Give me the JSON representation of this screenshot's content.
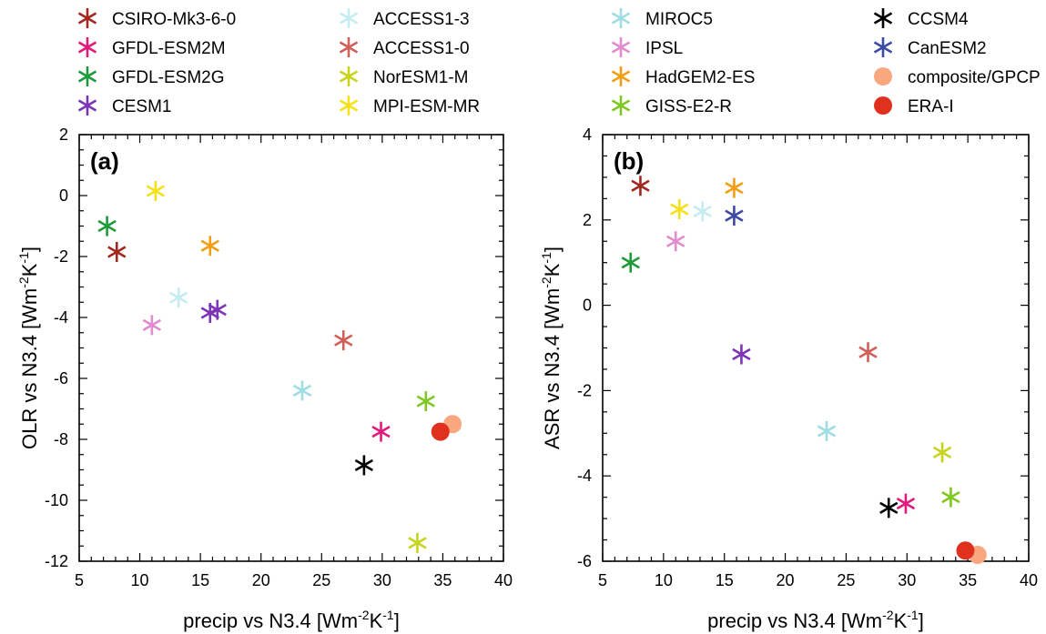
{
  "legend": {
    "entries": [
      {
        "label": "CSIRO-Mk3-6-0",
        "color": "#a3261f",
        "marker": "asterisk"
      },
      {
        "label": "GFDL-ESM2M",
        "color": "#e2197d",
        "marker": "asterisk"
      },
      {
        "label": "GFDL-ESM2G",
        "color": "#1f9a3a",
        "marker": "asterisk"
      },
      {
        "label": "CESM1",
        "color": "#7b35b5",
        "marker": "asterisk"
      },
      {
        "label": "ACCESS1-3",
        "color": "#c4ecf1",
        "marker": "asterisk"
      },
      {
        "label": "ACCESS1-0",
        "color": "#d0605a",
        "marker": "asterisk"
      },
      {
        "label": "NorESM1-M",
        "color": "#c8d31c",
        "marker": "asterisk"
      },
      {
        "label": "MPI-ESM-MR",
        "color": "#f5e11a",
        "marker": "asterisk"
      },
      {
        "label": "MIROC5",
        "color": "#9fdde3",
        "marker": "asterisk"
      },
      {
        "label": "IPSL",
        "color": "#e08ccd",
        "marker": "asterisk"
      },
      {
        "label": "HadGEM2-ES",
        "color": "#f29d12",
        "marker": "asterisk"
      },
      {
        "label": "GISS-E2-R",
        "color": "#7fc820",
        "marker": "asterisk"
      },
      {
        "label": "CCSM4",
        "color": "#000000",
        "marker": "asterisk"
      },
      {
        "label": "CanESM2",
        "color": "#3d4aa3",
        "marker": "asterisk"
      },
      {
        "label": "composite/GPCP",
        "color": "#f8a77f",
        "marker": "circle"
      },
      {
        "label": "ERA-I",
        "color": "#e0311f",
        "marker": "circle"
      }
    ]
  },
  "chart_data": [
    {
      "type": "scatter",
      "panel_label": "(a)",
      "xlabel": "precip vs N3.4 [Wm",
      "ylabel": "OLR vs N3.4 [Wm",
      "xlim": [
        5,
        40
      ],
      "ylim": [
        -12,
        2
      ],
      "x_ticks": [
        5,
        10,
        15,
        20,
        25,
        30,
        35,
        40
      ],
      "y_ticks": [
        -12,
        -10,
        -8,
        -6,
        -4,
        -2,
        0,
        2
      ],
      "grid": false,
      "points": [
        {
          "name": "CSIRO-Mk3-6-0",
          "x": 8.1,
          "y": -1.85
        },
        {
          "name": "GFDL-ESM2M",
          "x": 29.9,
          "y": -7.75
        },
        {
          "name": "GFDL-ESM2G",
          "x": 7.3,
          "y": -1.0
        },
        {
          "name": "CESM1",
          "x": 15.8,
          "y": -3.85
        },
        {
          "name": "CESM1",
          "x": 16.4,
          "y": -3.75
        },
        {
          "name": "ACCESS1-3",
          "x": 13.2,
          "y": -3.35
        },
        {
          "name": "ACCESS1-0",
          "x": 26.8,
          "y": -4.75
        },
        {
          "name": "NorESM1-M",
          "x": 32.9,
          "y": -11.4
        },
        {
          "name": "MPI-ESM-MR",
          "x": 11.3,
          "y": 0.15
        },
        {
          "name": "MIROC5",
          "x": 23.4,
          "y": -6.4
        },
        {
          "name": "IPSL",
          "x": 11.0,
          "y": -4.25
        },
        {
          "name": "HadGEM2-ES",
          "x": 15.8,
          "y": -1.65
        },
        {
          "name": "GISS-E2-R",
          "x": 33.6,
          "y": -6.75
        },
        {
          "name": "CCSM4",
          "x": 28.5,
          "y": -8.85
        },
        {
          "name": "composite/GPCP",
          "x": 35.8,
          "y": -7.5
        },
        {
          "name": "ERA-I",
          "x": 34.8,
          "y": -7.75
        }
      ]
    },
    {
      "type": "scatter",
      "panel_label": "(b)",
      "xlabel": "precip vs N3.4 [Wm",
      "ylabel": "ASR vs N3.4 [Wm",
      "xlim": [
        5,
        40
      ],
      "ylim": [
        -6,
        4
      ],
      "x_ticks": [
        5,
        10,
        15,
        20,
        25,
        30,
        35,
        40
      ],
      "y_ticks": [
        -6,
        -4,
        -2,
        0,
        2,
        4
      ],
      "grid": false,
      "points": [
        {
          "name": "CSIRO-Mk3-6-0",
          "x": 8.1,
          "y": 2.8
        },
        {
          "name": "GFDL-ESM2M",
          "x": 29.9,
          "y": -4.65
        },
        {
          "name": "GFDL-ESM2G",
          "x": 7.3,
          "y": 1.0
        },
        {
          "name": "CESM1",
          "x": 16.4,
          "y": -1.15
        },
        {
          "name": "ACCESS1-3",
          "x": 13.2,
          "y": 2.2
        },
        {
          "name": "ACCESS1-0",
          "x": 26.8,
          "y": -1.1
        },
        {
          "name": "NorESM1-M",
          "x": 32.9,
          "y": -3.45
        },
        {
          "name": "MPI-ESM-MR",
          "x": 11.3,
          "y": 2.25
        },
        {
          "name": "MIROC5",
          "x": 23.4,
          "y": -2.95
        },
        {
          "name": "IPSL",
          "x": 11.0,
          "y": 1.5
        },
        {
          "name": "HadGEM2-ES",
          "x": 15.8,
          "y": 2.75
        },
        {
          "name": "GISS-E2-R",
          "x": 33.6,
          "y": -4.5
        },
        {
          "name": "CCSM4",
          "x": 28.5,
          "y": -4.75
        },
        {
          "name": "CanESM2",
          "x": 15.8,
          "y": 2.1
        },
        {
          "name": "composite/GPCP",
          "x": 35.8,
          "y": -5.85
        },
        {
          "name": "ERA-I",
          "x": 34.8,
          "y": -5.75
        }
      ]
    }
  ]
}
